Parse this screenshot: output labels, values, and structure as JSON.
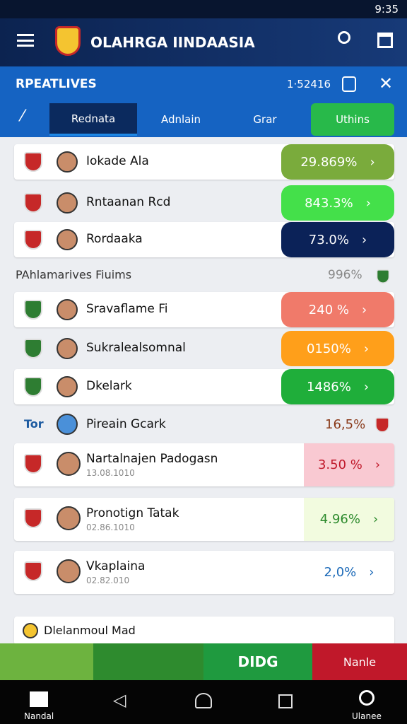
{
  "status": {
    "time": "9:35"
  },
  "header": {
    "title": "OLAHRGA IINDAASIA"
  },
  "subheader": {
    "title": "RPEATLIVES",
    "code": "1·52416"
  },
  "tabs": [
    "Rednata",
    "Adnlain",
    "Grar",
    "Uthins"
  ],
  "rows": [
    {
      "name": "Iokade Ala",
      "value": "29.869%"
    },
    {
      "name": "Rntaanan Rcd",
      "value": "843.3%"
    },
    {
      "name": "Rordaaka",
      "value": "73.0%"
    }
  ],
  "section": {
    "title": "PAhlamarives Fiuims",
    "value": "996%"
  },
  "rows2": [
    {
      "name": "Sravaflame Fi",
      "value": "240 %"
    },
    {
      "name": "Sukralealsomnal",
      "value": "0150%"
    },
    {
      "name": "Dkelark",
      "value": "1486%"
    }
  ],
  "section2": {
    "label": "Tor",
    "title": "Pireain Gcark",
    "value": "16,5%"
  },
  "players": [
    {
      "name": "Nartalnajen Padogasn",
      "date": "13.08.1010",
      "value": "3.50 %"
    },
    {
      "name": "Pronotign Tatak",
      "date": "02.86.1010",
      "value": "4.96%"
    },
    {
      "name": "Vkaplaina",
      "date": "02.82.010",
      "value": "2,0%"
    }
  ],
  "footer_card": {
    "title": "Dlelanmoul Mad"
  },
  "banner": {
    "center": "DIDG",
    "right": "Nanle"
  },
  "nav": {
    "home": "Nandal",
    "search": "Ulanee"
  }
}
